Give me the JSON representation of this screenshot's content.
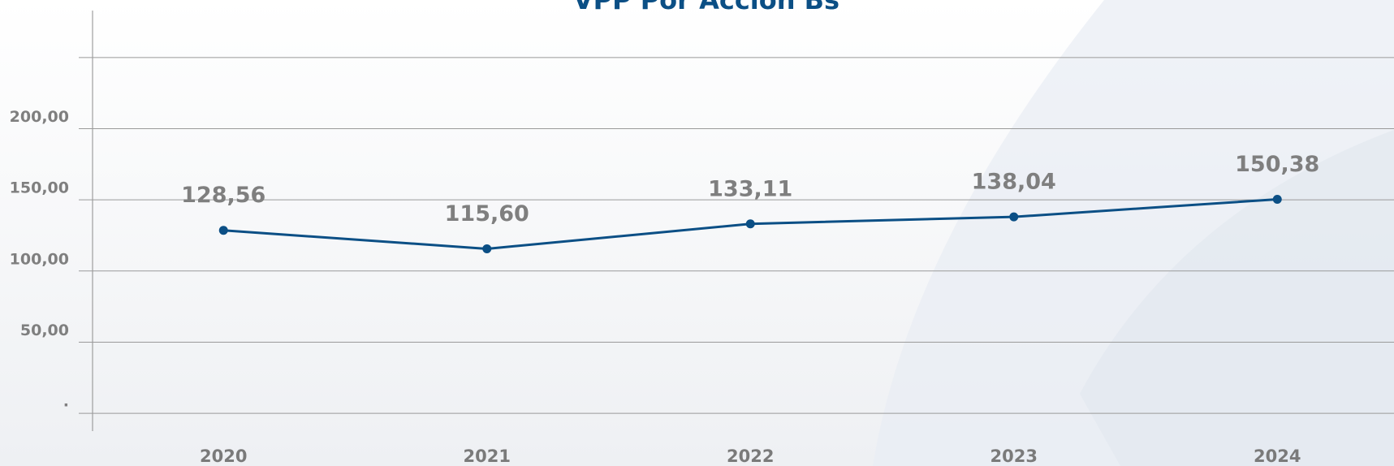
{
  "chart_data": {
    "type": "line",
    "title": "VPP Por Acción Bs",
    "categories": [
      "2020",
      "2021",
      "2022",
      "2023",
      "2024"
    ],
    "series": [
      {
        "name": "VPP Por Acción Bs",
        "color": "#0b4f85",
        "values": [
          128.56,
          115.6,
          133.11,
          138.04,
          150.38
        ],
        "value_labels": [
          "128,56",
          "115,60",
          "133,11",
          "138,04",
          "150,38"
        ]
      }
    ],
    "ylim": [
      -12.5,
      283
    ],
    "yticks": [
      {
        "value": 0,
        "label": "."
      },
      {
        "value": 50,
        "label": "50,00"
      },
      {
        "value": 100,
        "label": "100,00"
      },
      {
        "value": 150,
        "label": "150,00"
      },
      {
        "value": 200,
        "label": "200,00"
      },
      {
        "value": 250,
        "label": null
      }
    ],
    "grid": true
  }
}
